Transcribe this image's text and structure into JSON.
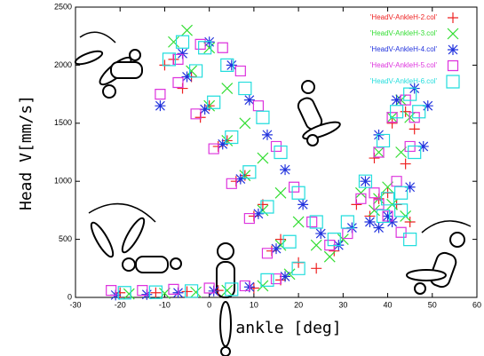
{
  "chart_data": {
    "type": "scatter",
    "xlabel": "ankle [deg]",
    "ylabel": "Head V[mm/s]",
    "xlim": [
      -30,
      60
    ],
    "xticks": [
      -30,
      -20,
      -10,
      0,
      10,
      20,
      30,
      40,
      50,
      60
    ],
    "ylim": [
      0,
      2500
    ],
    "yticks": [
      0,
      500,
      1000,
      1500,
      2000,
      2500
    ],
    "legend": "upper right",
    "series": [
      {
        "name": "'HeadV-AnkleH-2.col'",
        "color": "#ee2222",
        "marker": "plus",
        "x": [
          -20,
          -12,
          -5,
          2,
          10,
          16,
          14,
          10,
          6,
          2,
          -2,
          -6,
          -10,
          -8,
          -4,
          0,
          4,
          8,
          12,
          16,
          20,
          24,
          28,
          33,
          37,
          41,
          44,
          46,
          44,
          40,
          36,
          38,
          42,
          45
        ],
        "y": [
          40,
          40,
          50,
          60,
          80,
          150,
          400,
          700,
          1000,
          1300,
          1550,
          1800,
          2000,
          2050,
          1900,
          1650,
          1350,
          1050,
          800,
          500,
          300,
          250,
          400,
          800,
          1200,
          1500,
          1600,
          1450,
          1150,
          900,
          700,
          850,
          800,
          650
        ]
      },
      {
        "name": "'HeadV-AnkleH-3.col'",
        "color": "#33dd33",
        "marker": "cross",
        "x": [
          -18,
          -10,
          -3,
          4,
          12,
          18,
          16,
          12,
          8,
          4,
          0,
          -4,
          -8,
          -5,
          0,
          4,
          8,
          12,
          16,
          20,
          24,
          27,
          30,
          34,
          38,
          41,
          43,
          45,
          43,
          40,
          37,
          38,
          41,
          44
        ],
        "y": [
          30,
          35,
          45,
          60,
          100,
          200,
          450,
          750,
          1050,
          1350,
          1650,
          1950,
          2200,
          2300,
          2150,
          1800,
          1500,
          1200,
          900,
          650,
          450,
          350,
          500,
          900,
          1250,
          1550,
          1700,
          1550,
          1250,
          950,
          750,
          850,
          800,
          700
        ]
      },
      {
        "name": "'HeadV-AnkleH-4.col'",
        "color": "#2233dd",
        "marker": "star",
        "x": [
          -21,
          -14,
          -7,
          1,
          9,
          17,
          15,
          11,
          7,
          3,
          -1,
          -5,
          -11,
          -6,
          0,
          5,
          9,
          13,
          17,
          21,
          25,
          29,
          32,
          35,
          38,
          42,
          46,
          49,
          48,
          45,
          40,
          36,
          38,
          41
        ],
        "y": [
          20,
          25,
          40,
          55,
          90,
          180,
          420,
          720,
          1020,
          1320,
          1620,
          1900,
          1650,
          2100,
          2200,
          2000,
          1700,
          1400,
          1100,
          800,
          550,
          450,
          600,
          1000,
          1400,
          1700,
          1800,
          1650,
          1300,
          950,
          700,
          650,
          600,
          650
        ]
      },
      {
        "name": "'HeadV-AnkleH-5.col'",
        "color": "#dd33dd",
        "marker": "box",
        "x": [
          -22,
          -15,
          -8,
          0,
          8,
          15,
          13,
          9,
          5,
          1,
          -3,
          -7,
          -11,
          -7,
          -2,
          3,
          7,
          11,
          15,
          19,
          23,
          27,
          31,
          34,
          38,
          41,
          44,
          46,
          45,
          42,
          38,
          37,
          40,
          43
        ],
        "y": [
          60,
          60,
          70,
          80,
          100,
          160,
          380,
          680,
          980,
          1280,
          1580,
          1850,
          1750,
          2050,
          2180,
          2150,
          1950,
          1650,
          1300,
          950,
          650,
          450,
          550,
          850,
          1250,
          1550,
          1700,
          1550,
          1300,
          1000,
          800,
          900,
          700,
          560
        ]
      },
      {
        "name": "'HeadV-AnkleH-6.col'",
        "color": "#22dddd",
        "marker": "bigbox",
        "x": [
          -19,
          -12,
          -4,
          5,
          13,
          20,
          18,
          13,
          9,
          5,
          1,
          -3,
          -9,
          -6,
          -1,
          4,
          8,
          12,
          16,
          20,
          24,
          28,
          31,
          35,
          39,
          42,
          45,
          47,
          46,
          43,
          39,
          40,
          43,
          45
        ],
        "y": [
          40,
          45,
          55,
          70,
          150,
          250,
          480,
          780,
          1080,
          1380,
          1680,
          1950,
          2050,
          2200,
          2150,
          2000,
          1800,
          1550,
          1250,
          900,
          650,
          500,
          650,
          1000,
          1350,
          1600,
          1750,
          1600,
          1250,
          900,
          700,
          850,
          750,
          500
        ]
      }
    ]
  }
}
